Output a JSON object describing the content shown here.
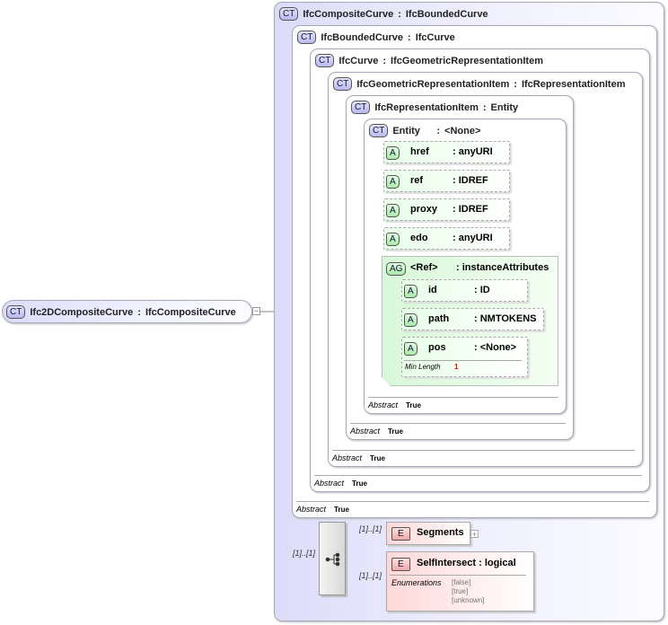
{
  "root": {
    "badge": "CT",
    "name": "Ifc2DCompositeCurve",
    "type": "IfcCompositeCurve"
  },
  "types": [
    {
      "badge": "CT",
      "name": "IfcCompositeCurve",
      "type": "IfcBoundedCurve"
    },
    {
      "badge": "CT",
      "name": "IfcBoundedCurve",
      "type": "IfcCurve",
      "abstract_label": "Abstract",
      "abstract_value": "True"
    },
    {
      "badge": "CT",
      "name": "IfcCurve",
      "type": "IfcGeometricRepresentationItem",
      "abstract_label": "Abstract",
      "abstract_value": "True"
    },
    {
      "badge": "CT",
      "name": "IfcGeometricRepresentationItem",
      "type": "IfcRepresentationItem",
      "abstract_label": "Abstract",
      "abstract_value": "True"
    },
    {
      "badge": "CT",
      "name": "IfcRepresentationItem",
      "type": "Entity",
      "abstract_label": "Abstract",
      "abstract_value": "True"
    },
    {
      "badge": "CT",
      "name": "Entity",
      "type": "<None>",
      "abstract_label": "Abstract",
      "abstract_value": "True"
    }
  ],
  "attributes": [
    {
      "badge": "A",
      "name": "href",
      "type": "anyURI"
    },
    {
      "badge": "A",
      "name": "ref",
      "type": "IDREF"
    },
    {
      "badge": "A",
      "name": "proxy",
      "type": "IDREF"
    },
    {
      "badge": "A",
      "name": "edo",
      "type": "anyURI"
    }
  ],
  "attribute_group": {
    "badge": "AG",
    "name": "<Ref>",
    "type": "instanceAttributes",
    "attributes": [
      {
        "badge": "A",
        "name": "id",
        "type": "ID"
      },
      {
        "badge": "A",
        "name": "path",
        "type": "NMTOKENS"
      },
      {
        "badge": "A",
        "name": "pos",
        "type": "<None>",
        "facet_label": "Min Length",
        "facet_value": "1"
      }
    ]
  },
  "sequence": {
    "cardinality": "[1]..[1]"
  },
  "elements": [
    {
      "badge": "E",
      "name": "Segments",
      "cardinality": "[1]..[1]"
    },
    {
      "badge": "E",
      "name": "SelfIntersect",
      "type": "logical",
      "cardinality": "[1]..[1]",
      "enum_label": "Enumerations",
      "enums": [
        "[false]",
        "[true]",
        "[unknown]"
      ]
    }
  ]
}
